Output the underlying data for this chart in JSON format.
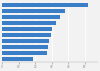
{
  "bars": [
    {
      "value": 52000
    },
    {
      "value": 38000
    },
    {
      "value": 35000
    },
    {
      "value": 32500
    },
    {
      "value": 30500
    },
    {
      "value": 29500
    },
    {
      "value": 28500
    },
    {
      "value": 27500
    },
    {
      "value": 27000
    },
    {
      "value": 19000
    }
  ],
  "bar_color": "#3a7ec8",
  "background_color": "#f2f2f2",
  "plot_bg_color": "#f2f2f2",
  "xlim": [
    0,
    58000
  ],
  "xtick_color": "#888888",
  "grid_color": "#ffffff",
  "bar_height": 0.72
}
